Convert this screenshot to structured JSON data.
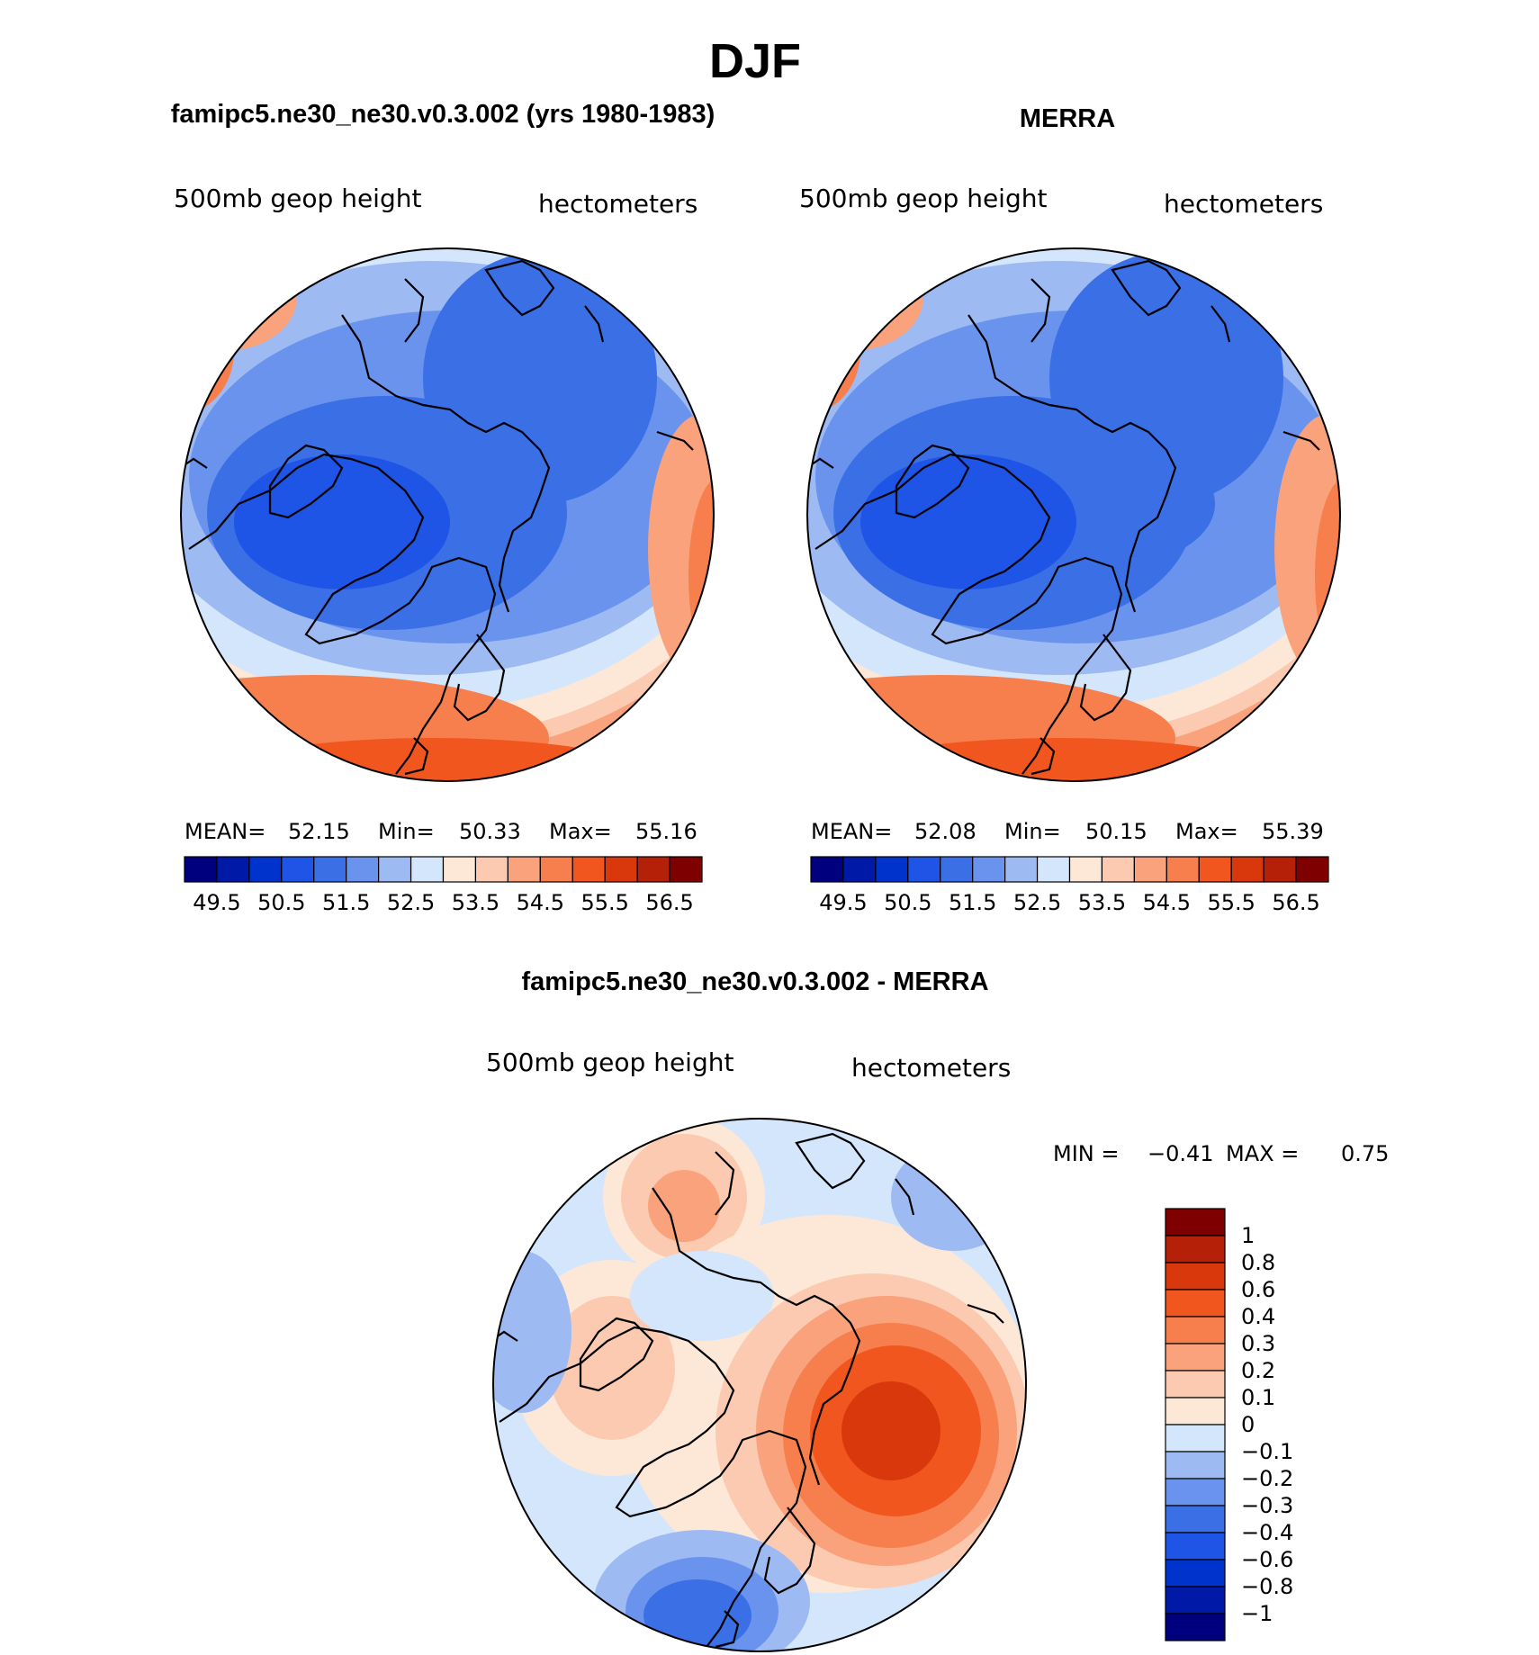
{
  "page": {
    "main_title": "DJF",
    "left_panel_title": "famipc5.ne30_ne30.v0.3.002 (yrs 1980-1983)",
    "right_panel_title": "MERRA",
    "diff_panel_title": "famipc5.ne30_ne30.v0.3.002 - MERRA"
  },
  "panels": [
    {
      "id": "model",
      "variable_label": "500mb  geop  height",
      "units_label": "hectometers",
      "stats": {
        "mean_label": "MEAN=",
        "mean_value": "52.15",
        "min_label": "Min=",
        "min_value": "50.33",
        "max_label": "Max=",
        "max_value": "55.16"
      }
    },
    {
      "id": "merra",
      "variable_label": "500mb  geop  height",
      "units_label": "hectometers",
      "stats": {
        "mean_label": "MEAN=",
        "mean_value": "52.08",
        "min_label": "Min=",
        "min_value": "50.15",
        "max_label": "Max=",
        "max_value": "55.39"
      }
    },
    {
      "id": "difference",
      "variable_label": "500mb  geop  height",
      "units_label": "hectometers",
      "stats": {
        "min_label": "MIN =",
        "min_value": "−0.41",
        "max_label": "MAX =",
        "max_value": "0.75"
      }
    }
  ],
  "colorbars": {
    "absolute": {
      "colors": [
        "#00007f",
        "#0019a6",
        "#0033cc",
        "#1f55e6",
        "#3a6fe6",
        "#6a93ee",
        "#9dbaf3",
        "#d4e6fb",
        "#fde8d8",
        "#fbcab0",
        "#f9a27c",
        "#f77f4e",
        "#f2561f",
        "#d9380d",
        "#b52009",
        "#7f0000"
      ],
      "tick_labels": [
        "49.5",
        "50.5",
        "51.5",
        "52.5",
        "53.5",
        "54.5",
        "55.5",
        "56.5"
      ]
    },
    "difference": {
      "colors": [
        "#7f0000",
        "#b52009",
        "#d9380d",
        "#f2561f",
        "#f77f4e",
        "#f9a27c",
        "#fbcab0",
        "#fde8d8",
        "#d4e6fb",
        "#9dbaf3",
        "#6a93ee",
        "#3a6fe6",
        "#1f55e6",
        "#0033cc",
        "#0019a6",
        "#00007f"
      ],
      "tick_labels": [
        "1",
        "0.8",
        "0.6",
        "0.4",
        "0.3",
        "0.2",
        "0.1",
        "0",
        "−0.1",
        "−0.2",
        "−0.3",
        "−0.4",
        "−0.6",
        "−0.8",
        "−1"
      ]
    }
  }
}
